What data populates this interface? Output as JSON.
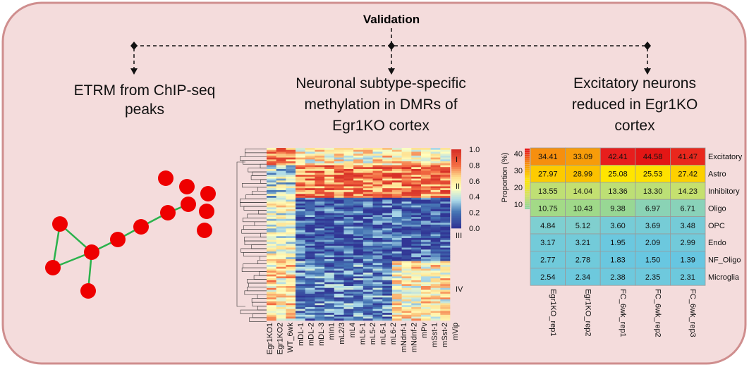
{
  "title": "Validation",
  "panels": [
    {
      "title_lines": [
        "ETRM from ChIP-seq",
        "peaks"
      ]
    },
    {
      "title_lines": [
        "Neuronal subtype-specific",
        "methylation in DMRs of",
        "Egr1KO cortex"
      ],
      "colorbar_ticks": [
        "1.0",
        "0.8",
        "0.6",
        "0.4",
        "0.2",
        "0.0"
      ],
      "clusters": [
        "I",
        "II",
        "III",
        "IV"
      ],
      "sample_groups": [
        {
          "color": "#000000",
          "samples": [
            "Egr1KO1",
            "Egr1KO2",
            "WT_6wk"
          ]
        },
        {
          "color": "#2222cc",
          "samples": [
            "mDL-1",
            "mDL-2",
            "mDL-3",
            "mIn1",
            "mL2/3",
            "mL4",
            "mL5-1",
            "mL5-2",
            "mL6-1",
            "mL6-2"
          ]
        },
        {
          "color": "#e8901a",
          "samples": [
            "mNdnf-1",
            "mNdnf-2",
            "mPv",
            "mSst-1",
            "mSst-2",
            "mVip"
          ]
        }
      ]
    },
    {
      "title_lines": [
        "Excitatory neurons",
        "reduced in Egr1KO",
        "cortex"
      ],
      "legend_title": "Proportion (%)",
      "legend_ticks": [
        40,
        30,
        20,
        10
      ],
      "columns": [
        "Egr1KO_rep1",
        "Egr1KO_rep2",
        "FC_6wk_rep1",
        "FC_6wk_rep2",
        "FC_6wk_rep3"
      ],
      "rows": [
        {
          "label": "Excitatory",
          "values": [
            "34.41",
            "33.09",
            "42.41",
            "44.58",
            "41.47"
          ]
        },
        {
          "label": "Astro",
          "values": [
            "27.97",
            "28.99",
            "25.08",
            "25.53",
            "27.42"
          ]
        },
        {
          "label": "Inhibitory",
          "values": [
            "13.55",
            "14.04",
            "13.36",
            "13.30",
            "14.23"
          ]
        },
        {
          "label": "Oligo",
          "values": [
            "10.75",
            "10.43",
            "9.38",
            "6.97",
            "6.71"
          ]
        },
        {
          "label": "OPC",
          "values": [
            "4.84",
            "5.12",
            "3.60",
            "3.69",
            "3.48"
          ]
        },
        {
          "label": "Endo",
          "values": [
            "3.17",
            "3.21",
            "1.95",
            "2.09",
            "2.99"
          ]
        },
        {
          "label": "NF_Oligo",
          "values": [
            "2.77",
            "2.78",
            "1.83",
            "1.50",
            "1.39"
          ]
        },
        {
          "label": "Microglia",
          "values": [
            "2.54",
            "2.34",
            "2.38",
            "2.35",
            "2.31"
          ]
        }
      ]
    }
  ]
}
